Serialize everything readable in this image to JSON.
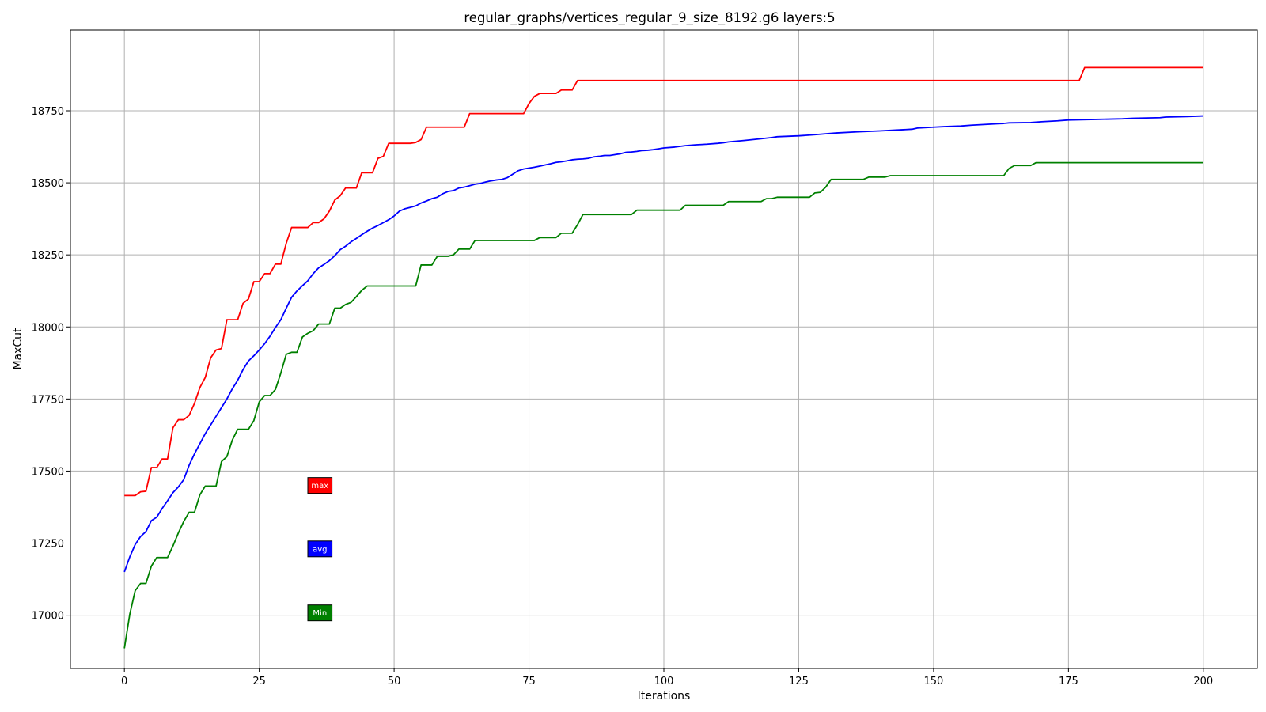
{
  "chart_data": {
    "type": "line",
    "title": "regular_graphs/vertices_regular_9_size_8192.g6 layers:5",
    "xlabel": "Iterations",
    "ylabel": "MaxCut",
    "xlim": [
      -10,
      210
    ],
    "ylim": [
      16815,
      19030
    ],
    "x_ticks": [
      0,
      25,
      50,
      75,
      100,
      125,
      150,
      175,
      200
    ],
    "y_ticks": [
      17000,
      17250,
      17500,
      17750,
      18000,
      18250,
      18500,
      18750
    ],
    "grid": true,
    "legend_placement": "inside-left, stacked labels",
    "series": [
      {
        "name": "max",
        "color": "#ff0000",
        "points": [
          [
            0,
            17415
          ],
          [
            2,
            17415
          ],
          [
            3,
            17428
          ],
          [
            4,
            17430
          ],
          [
            5,
            17512
          ],
          [
            6,
            17512
          ],
          [
            7,
            17542
          ],
          [
            8,
            17542
          ],
          [
            9,
            17650
          ],
          [
            10,
            17678
          ],
          [
            11,
            17678
          ],
          [
            12,
            17693
          ],
          [
            13,
            17735
          ],
          [
            14,
            17790
          ],
          [
            15,
            17825
          ],
          [
            16,
            17893
          ],
          [
            17,
            17920
          ],
          [
            18,
            17925
          ],
          [
            19,
            18025
          ],
          [
            20,
            18025
          ],
          [
            21,
            18025
          ],
          [
            22,
            18082
          ],
          [
            23,
            18097
          ],
          [
            24,
            18157
          ],
          [
            25,
            18157
          ],
          [
            26,
            18185
          ],
          [
            27,
            18185
          ],
          [
            28,
            18218
          ],
          [
            29,
            18218
          ],
          [
            30,
            18290
          ],
          [
            31,
            18345
          ],
          [
            32,
            18345
          ],
          [
            34,
            18345
          ],
          [
            35,
            18362
          ],
          [
            36,
            18362
          ],
          [
            37,
            18375
          ],
          [
            38,
            18402
          ],
          [
            39,
            18440
          ],
          [
            40,
            18455
          ],
          [
            41,
            18482
          ],
          [
            42,
            18482
          ],
          [
            43,
            18482
          ],
          [
            44,
            18535
          ],
          [
            45,
            18535
          ],
          [
            46,
            18535
          ],
          [
            47,
            18585
          ],
          [
            48,
            18592
          ],
          [
            49,
            18637
          ],
          [
            50,
            18637
          ],
          [
            53,
            18637
          ],
          [
            54,
            18640
          ],
          [
            55,
            18650
          ],
          [
            56,
            18693
          ],
          [
            57,
            18693
          ],
          [
            63,
            18693
          ],
          [
            64,
            18740
          ],
          [
            65,
            18740
          ],
          [
            74,
            18740
          ],
          [
            75,
            18775
          ],
          [
            76,
            18800
          ],
          [
            77,
            18810
          ],
          [
            80,
            18810
          ],
          [
            81,
            18822
          ],
          [
            83,
            18822
          ],
          [
            84,
            18855
          ],
          [
            177,
            18855
          ],
          [
            178,
            18900
          ],
          [
            200,
            18900
          ]
        ]
      },
      {
        "name": "avg",
        "color": "#0000ff",
        "points": [
          [
            0,
            17150
          ],
          [
            1,
            17202
          ],
          [
            2,
            17245
          ],
          [
            3,
            17273
          ],
          [
            4,
            17290
          ],
          [
            5,
            17328
          ],
          [
            6,
            17340
          ],
          [
            7,
            17370
          ],
          [
            8,
            17397
          ],
          [
            9,
            17425
          ],
          [
            10,
            17445
          ],
          [
            11,
            17470
          ],
          [
            12,
            17520
          ],
          [
            13,
            17560
          ],
          [
            14,
            17595
          ],
          [
            15,
            17630
          ],
          [
            16,
            17660
          ],
          [
            17,
            17690
          ],
          [
            18,
            17720
          ],
          [
            19,
            17750
          ],
          [
            20,
            17785
          ],
          [
            21,
            17815
          ],
          [
            22,
            17852
          ],
          [
            23,
            17882
          ],
          [
            24,
            17900
          ],
          [
            25,
            17920
          ],
          [
            26,
            17942
          ],
          [
            27,
            17968
          ],
          [
            28,
            17998
          ],
          [
            29,
            18025
          ],
          [
            30,
            18065
          ],
          [
            31,
            18103
          ],
          [
            32,
            18125
          ],
          [
            33,
            18143
          ],
          [
            34,
            18160
          ],
          [
            35,
            18185
          ],
          [
            36,
            18205
          ],
          [
            37,
            18217
          ],
          [
            38,
            18230
          ],
          [
            39,
            18247
          ],
          [
            40,
            18268
          ],
          [
            41,
            18280
          ],
          [
            42,
            18295
          ],
          [
            43,
            18307
          ],
          [
            44,
            18320
          ],
          [
            45,
            18332
          ],
          [
            46,
            18343
          ],
          [
            47,
            18352
          ],
          [
            48,
            18362
          ],
          [
            49,
            18372
          ],
          [
            50,
            18385
          ],
          [
            51,
            18402
          ],
          [
            52,
            18410
          ],
          [
            53,
            18415
          ],
          [
            54,
            18420
          ],
          [
            55,
            18430
          ],
          [
            56,
            18437
          ],
          [
            57,
            18445
          ],
          [
            58,
            18450
          ],
          [
            59,
            18462
          ],
          [
            60,
            18470
          ],
          [
            61,
            18473
          ],
          [
            62,
            18482
          ],
          [
            63,
            18485
          ],
          [
            64,
            18490
          ],
          [
            65,
            18495
          ],
          [
            66,
            18498
          ],
          [
            67,
            18503
          ],
          [
            68,
            18507
          ],
          [
            69,
            18510
          ],
          [
            70,
            18512
          ],
          [
            71,
            18518
          ],
          [
            72,
            18530
          ],
          [
            73,
            18542
          ],
          [
            74,
            18548
          ],
          [
            75,
            18551
          ],
          [
            76,
            18554
          ],
          [
            77,
            18558
          ],
          [
            78,
            18562
          ],
          [
            79,
            18566
          ],
          [
            80,
            18571
          ],
          [
            81,
            18573
          ],
          [
            82,
            18576
          ],
          [
            83,
            18580
          ],
          [
            84,
            18582
          ],
          [
            85,
            18583
          ],
          [
            86,
            18585
          ],
          [
            87,
            18590
          ],
          [
            88,
            18592
          ],
          [
            89,
            18595
          ],
          [
            90,
            18595
          ],
          [
            91,
            18598
          ],
          [
            92,
            18601
          ],
          [
            93,
            18606
          ],
          [
            94,
            18607
          ],
          [
            95,
            18609
          ],
          [
            96,
            18612
          ],
          [
            97,
            18613
          ],
          [
            98,
            18615
          ],
          [
            99,
            18618
          ],
          [
            100,
            18621
          ],
          [
            102,
            18624
          ],
          [
            104,
            18629
          ],
          [
            106,
            18632
          ],
          [
            108,
            18634
          ],
          [
            110,
            18637
          ],
          [
            111,
            18639
          ],
          [
            112,
            18642
          ],
          [
            115,
            18647
          ],
          [
            118,
            18653
          ],
          [
            120,
            18657
          ],
          [
            121,
            18660
          ],
          [
            125,
            18663
          ],
          [
            128,
            18667
          ],
          [
            130,
            18670
          ],
          [
            132,
            18673
          ],
          [
            136,
            18677
          ],
          [
            140,
            18680
          ],
          [
            143,
            18683
          ],
          [
            146,
            18686
          ],
          [
            147,
            18690
          ],
          [
            150,
            18693
          ],
          [
            152,
            18695
          ],
          [
            155,
            18697
          ],
          [
            157,
            18700
          ],
          [
            160,
            18703
          ],
          [
            162,
            18705
          ],
          [
            163,
            18706
          ],
          [
            164,
            18708
          ],
          [
            168,
            18709
          ],
          [
            170,
            18712
          ],
          [
            173,
            18715
          ],
          [
            175,
            18718
          ],
          [
            180,
            18720
          ],
          [
            185,
            18722
          ],
          [
            187,
            18724
          ],
          [
            192,
            18726
          ],
          [
            193,
            18728
          ],
          [
            197,
            18730
          ],
          [
            200,
            18732
          ]
        ]
      },
      {
        "name": "Min",
        "color": "#008000",
        "points": [
          [
            0,
            16885
          ],
          [
            1,
            17003
          ],
          [
            2,
            17085
          ],
          [
            3,
            17110
          ],
          [
            4,
            17110
          ],
          [
            5,
            17170
          ],
          [
            6,
            17200
          ],
          [
            8,
            17200
          ],
          [
            9,
            17240
          ],
          [
            10,
            17285
          ],
          [
            11,
            17325
          ],
          [
            12,
            17357
          ],
          [
            13,
            17357
          ],
          [
            14,
            17418
          ],
          [
            15,
            17448
          ],
          [
            17,
            17448
          ],
          [
            18,
            17533
          ],
          [
            19,
            17550
          ],
          [
            20,
            17607
          ],
          [
            21,
            17645
          ],
          [
            23,
            17645
          ],
          [
            24,
            17675
          ],
          [
            25,
            17740
          ],
          [
            26,
            17762
          ],
          [
            27,
            17762
          ],
          [
            28,
            17783
          ],
          [
            29,
            17840
          ],
          [
            30,
            17905
          ],
          [
            31,
            17912
          ],
          [
            32,
            17912
          ],
          [
            33,
            17965
          ],
          [
            34,
            17978
          ],
          [
            35,
            17987
          ],
          [
            36,
            18010
          ],
          [
            37,
            18010
          ],
          [
            38,
            18010
          ],
          [
            39,
            18065
          ],
          [
            40,
            18065
          ],
          [
            41,
            18078
          ],
          [
            42,
            18085
          ],
          [
            43,
            18105
          ],
          [
            44,
            18127
          ],
          [
            45,
            18142
          ],
          [
            54,
            18142
          ],
          [
            55,
            18215
          ],
          [
            57,
            18215
          ],
          [
            58,
            18245
          ],
          [
            60,
            18245
          ],
          [
            61,
            18250
          ],
          [
            62,
            18270
          ],
          [
            63,
            18270
          ],
          [
            64,
            18270
          ],
          [
            65,
            18300
          ],
          [
            76,
            18300
          ],
          [
            77,
            18310
          ],
          [
            80,
            18310
          ],
          [
            81,
            18325
          ],
          [
            83,
            18325
          ],
          [
            84,
            18355
          ],
          [
            85,
            18390
          ],
          [
            94,
            18390
          ],
          [
            95,
            18405
          ],
          [
            103,
            18405
          ],
          [
            104,
            18422
          ],
          [
            111,
            18422
          ],
          [
            112,
            18435
          ],
          [
            118,
            18435
          ],
          [
            119,
            18445
          ],
          [
            120,
            18445
          ],
          [
            121,
            18450
          ],
          [
            127,
            18450
          ],
          [
            128,
            18465
          ],
          [
            129,
            18467
          ],
          [
            130,
            18485
          ],
          [
            131,
            18512
          ],
          [
            137,
            18512
          ],
          [
            138,
            18520
          ],
          [
            141,
            18520
          ],
          [
            142,
            18525
          ],
          [
            163,
            18525
          ],
          [
            164,
            18550
          ],
          [
            165,
            18560
          ],
          [
            168,
            18560
          ],
          [
            169,
            18570
          ],
          [
            200,
            18570
          ]
        ]
      }
    ],
    "legend": [
      {
        "label": "max",
        "color": "#ff0000"
      },
      {
        "label": "avg",
        "color": "#0000ff"
      },
      {
        "label": "Min",
        "color": "#008000"
      }
    ]
  }
}
